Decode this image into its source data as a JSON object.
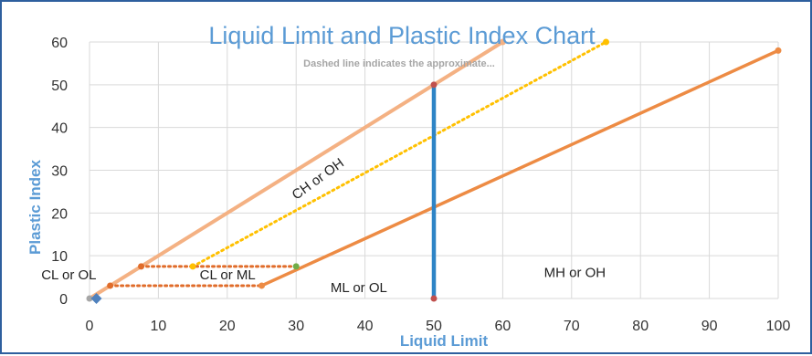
{
  "chart_data": {
    "type": "line",
    "title": "Liquid Limit and Plastic Index Chart",
    "subtitle": "Dashed line indicates the approximate...",
    "xlabel": "Liquid Limit",
    "ylabel": "Plastic Index",
    "xlim": [
      0,
      100
    ],
    "ylim": [
      0,
      60
    ],
    "x_ticks": [
      0,
      10,
      20,
      30,
      40,
      50,
      60,
      70,
      80,
      90,
      100
    ],
    "y_ticks": [
      0,
      10,
      20,
      30,
      40,
      50,
      60
    ],
    "grid": true,
    "series": [
      {
        "color": "#f4b183",
        "style": "solid",
        "width": 4,
        "points": [
          [
            0,
            0
          ],
          [
            60,
            60
          ]
        ]
      },
      {
        "color": "#ed8b44",
        "style": "solid",
        "width": 3.5,
        "points": [
          [
            25,
            3
          ],
          [
            100,
            58
          ]
        ]
      },
      {
        "color": "#ffc000",
        "style": "dotted",
        "width": 3,
        "points": [
          [
            15,
            7.5
          ],
          [
            75,
            60
          ]
        ]
      },
      {
        "color": "#2e84c6",
        "style": "solid",
        "width": 4.5,
        "points": [
          [
            50,
            0
          ],
          [
            50,
            50
          ]
        ]
      },
      {
        "color": "#e06c2a",
        "style": "dotted",
        "width": 3,
        "points": [
          [
            7.5,
            7.5
          ],
          [
            30,
            7.5
          ]
        ]
      },
      {
        "color": "#e06c2a",
        "style": "dotted",
        "width": 3,
        "points": [
          [
            3,
            3
          ],
          [
            25,
            3
          ]
        ]
      }
    ],
    "markers": [
      {
        "x": 0,
        "y": 0,
        "color": "#a6a6a6"
      },
      {
        "x": 60,
        "y": 60,
        "color": "#f4b183"
      },
      {
        "x": 25,
        "y": 3,
        "color": "#ed8b44"
      },
      {
        "x": 100,
        "y": 58,
        "color": "#ed8b44"
      },
      {
        "x": 15,
        "y": 7.5,
        "color": "#ffc000"
      },
      {
        "x": 75,
        "y": 60,
        "color": "#ffc000"
      },
      {
        "x": 50,
        "y": 0,
        "color": "#c0504d"
      },
      {
        "x": 50,
        "y": 50,
        "color": "#c0504d"
      },
      {
        "x": 7.5,
        "y": 7.5,
        "color": "#e06c2a"
      },
      {
        "x": 30,
        "y": 7.5,
        "color": "#70ad47"
      },
      {
        "x": 3,
        "y": 3,
        "color": "#e06c2a"
      },
      {
        "x": 1,
        "y": 0,
        "color": "#4f81bd",
        "shape": "diamond"
      }
    ],
    "annotations": [
      {
        "text": "CH or OH",
        "x": 30,
        "y": 23,
        "rotate": -36
      },
      {
        "text": "CL or ML",
        "x": 16,
        "y": 4.5
      },
      {
        "text": "CL or OL",
        "x": -7,
        "y": 4.5
      },
      {
        "text": "ML or OL",
        "x": 35,
        "y": 1.5
      },
      {
        "text": "MH or OH",
        "x": 66,
        "y": 5
      }
    ],
    "colors": {
      "title": "#5b9bd5",
      "subtitle": "#a6a6a6",
      "axis_label": "#5b9bd5",
      "grid": "#d9d9d9",
      "border": "#2e5f9e"
    }
  }
}
